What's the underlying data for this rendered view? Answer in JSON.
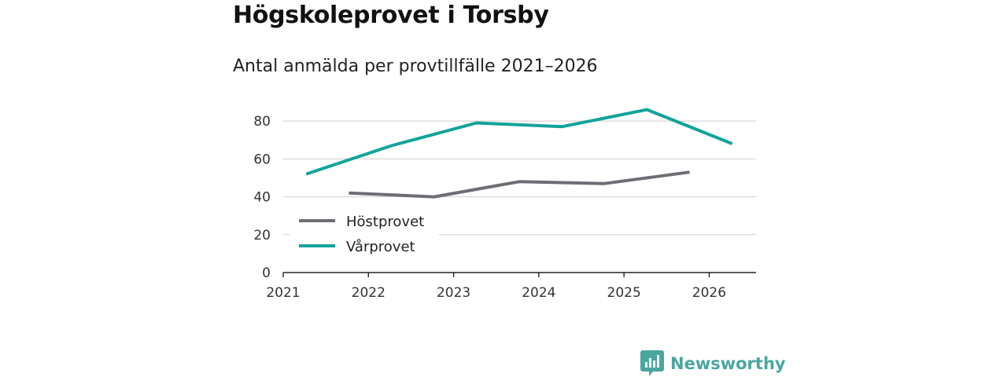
{
  "title": "Högskoleprovet i Torsby",
  "subtitle": "Antal anmälda per provtillfälle 2021–2026",
  "brand": {
    "name": "Newsworthy",
    "icon": "newsworthy-logo-icon",
    "color": "#4aa6a0"
  },
  "chart_data": {
    "type": "line",
    "title": "Högskoleprovet i Torsby",
    "subtitle": "Antal anmälda per provtillfälle 2021–2026",
    "xlabel": "",
    "ylabel": "",
    "xlim": [
      2021,
      2026.55
    ],
    "ylim": [
      0,
      90
    ],
    "x_ticks": [
      2021,
      2022,
      2023,
      2024,
      2025,
      2026
    ],
    "y_ticks": [
      0,
      20,
      40,
      60,
      80
    ],
    "grid": true,
    "legend_position": "left",
    "series": [
      {
        "name": "Höstprovet",
        "color": "#6e6d74",
        "points": [
          {
            "x": 2021.77,
            "y": 42
          },
          {
            "x": 2022.77,
            "y": 40
          },
          {
            "x": 2023.77,
            "y": 48
          },
          {
            "x": 2024.77,
            "y": 47
          },
          {
            "x": 2025.77,
            "y": 53
          }
        ]
      },
      {
        "name": "Vårprovet",
        "color": "#13a39a",
        "points": [
          {
            "x": 2021.27,
            "y": 52
          },
          {
            "x": 2022.27,
            "y": 67
          },
          {
            "x": 2023.27,
            "y": 79
          },
          {
            "x": 2024.27,
            "y": 77
          },
          {
            "x": 2025.27,
            "y": 86
          },
          {
            "x": 2026.27,
            "y": 68
          }
        ]
      }
    ]
  }
}
